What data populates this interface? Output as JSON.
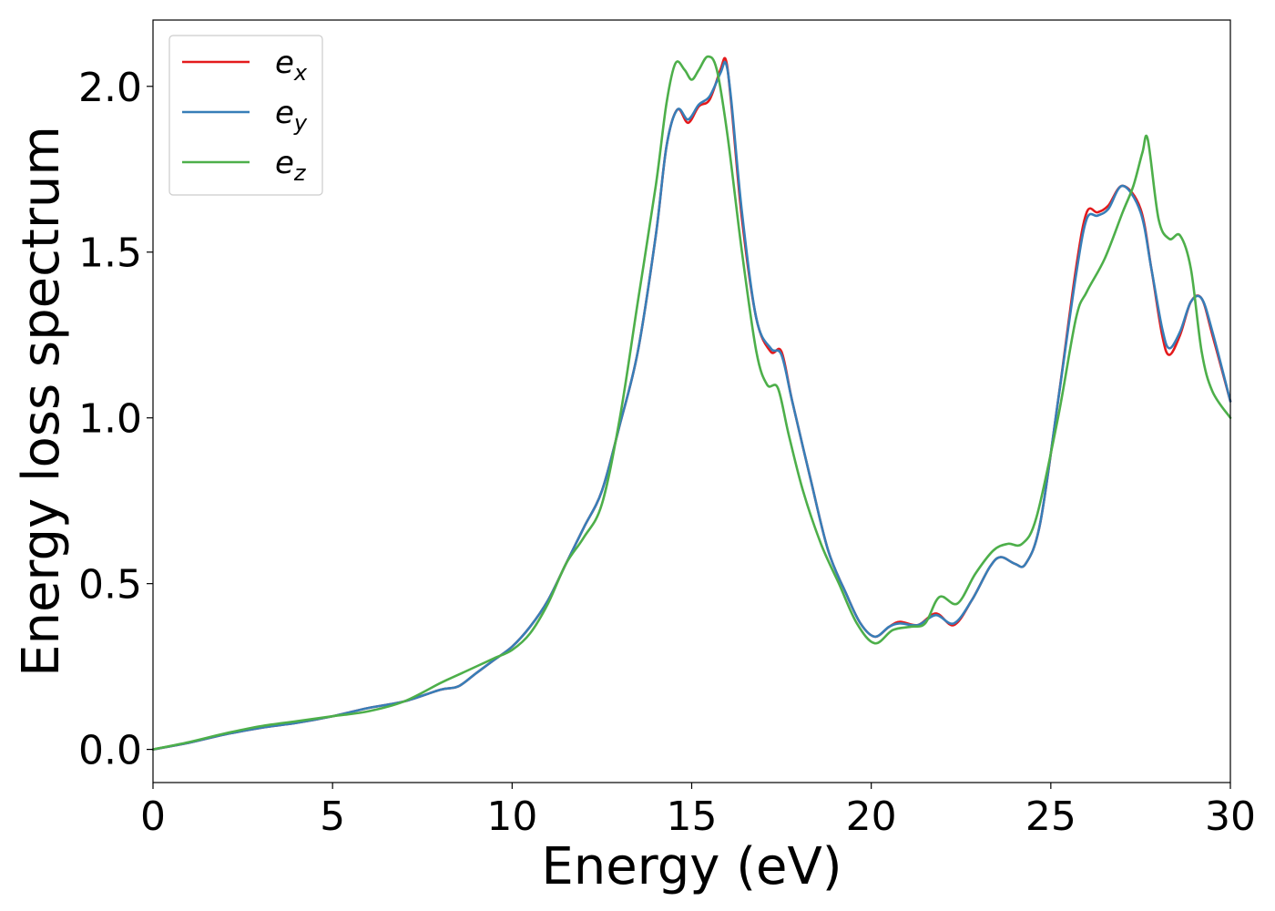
{
  "chart_data": {
    "type": "line",
    "xlabel": "Energy (eV)",
    "ylabel": "Energy loss spectrum",
    "xlim": [
      0,
      30
    ],
    "ylim": [
      -0.1,
      2.2
    ],
    "xticks": [
      0,
      5,
      10,
      15,
      20,
      25,
      30
    ],
    "xtick_labels": [
      "0",
      "5",
      "10",
      "15",
      "20",
      "25",
      "30"
    ],
    "yticks": [
      0.0,
      0.5,
      1.0,
      1.5,
      2.0
    ],
    "ytick_labels": [
      "0.0",
      "0.5",
      "1.0",
      "1.5",
      "2.0"
    ],
    "grid": false,
    "legend_position": "top-left",
    "series": [
      {
        "name": "e_x",
        "legend_base": "e",
        "legend_sub": "x",
        "color": "#e41a1c",
        "points": [
          [
            0,
            0
          ],
          [
            1,
            0.02
          ],
          [
            2,
            0.045
          ],
          [
            3,
            0.065
          ],
          [
            4,
            0.08
          ],
          [
            5,
            0.1
          ],
          [
            6,
            0.125
          ],
          [
            7,
            0.145
          ],
          [
            8,
            0.18
          ],
          [
            8.5,
            0.19
          ],
          [
            9,
            0.23
          ],
          [
            9.5,
            0.27
          ],
          [
            10,
            0.31
          ],
          [
            10.5,
            0.37
          ],
          [
            11,
            0.45
          ],
          [
            11.5,
            0.56
          ],
          [
            12,
            0.67
          ],
          [
            12.5,
            0.78
          ],
          [
            13,
            0.98
          ],
          [
            13.5,
            1.2
          ],
          [
            14,
            1.55
          ],
          [
            14.3,
            1.82
          ],
          [
            14.6,
            1.93
          ],
          [
            14.9,
            1.89
          ],
          [
            15.2,
            1.94
          ],
          [
            15.5,
            1.96
          ],
          [
            15.8,
            2.05
          ],
          [
            15.95,
            2.08
          ],
          [
            16.1,
            1.95
          ],
          [
            16.4,
            1.6
          ],
          [
            16.8,
            1.3
          ],
          [
            17.2,
            1.2
          ],
          [
            17.5,
            1.2
          ],
          [
            17.8,
            1.05
          ],
          [
            18.3,
            0.82
          ],
          [
            18.8,
            0.6
          ],
          [
            19.3,
            0.47
          ],
          [
            19.7,
            0.38
          ],
          [
            20.1,
            0.34
          ],
          [
            20.5,
            0.37
          ],
          [
            20.8,
            0.385
          ],
          [
            21.3,
            0.375
          ],
          [
            21.8,
            0.41
          ],
          [
            22.3,
            0.375
          ],
          [
            22.8,
            0.45
          ],
          [
            23.3,
            0.55
          ],
          [
            23.6,
            0.58
          ],
          [
            24,
            0.56
          ],
          [
            24.3,
            0.56
          ],
          [
            24.7,
            0.68
          ],
          [
            25.2,
            1.05
          ],
          [
            25.7,
            1.45
          ],
          [
            26,
            1.62
          ],
          [
            26.3,
            1.62
          ],
          [
            26.6,
            1.64
          ],
          [
            27,
            1.7
          ],
          [
            27.5,
            1.63
          ],
          [
            27.8,
            1.45
          ],
          [
            28.1,
            1.25
          ],
          [
            28.3,
            1.19
          ],
          [
            28.6,
            1.25
          ],
          [
            28.9,
            1.35
          ],
          [
            29.2,
            1.36
          ],
          [
            29.5,
            1.25
          ],
          [
            30,
            1.05
          ]
        ]
      },
      {
        "name": "e_y",
        "legend_base": "e",
        "legend_sub": "y",
        "color": "#377eb8",
        "points": [
          [
            0,
            0
          ],
          [
            1,
            0.02
          ],
          [
            2,
            0.045
          ],
          [
            3,
            0.065
          ],
          [
            4,
            0.08
          ],
          [
            5,
            0.1
          ],
          [
            6,
            0.125
          ],
          [
            7,
            0.145
          ],
          [
            8,
            0.18
          ],
          [
            8.5,
            0.19
          ],
          [
            9,
            0.23
          ],
          [
            9.5,
            0.27
          ],
          [
            10,
            0.31
          ],
          [
            10.5,
            0.37
          ],
          [
            11,
            0.45
          ],
          [
            11.5,
            0.56
          ],
          [
            12,
            0.67
          ],
          [
            12.5,
            0.78
          ],
          [
            13,
            0.98
          ],
          [
            13.5,
            1.2
          ],
          [
            14,
            1.55
          ],
          [
            14.3,
            1.82
          ],
          [
            14.6,
            1.93
          ],
          [
            14.9,
            1.9
          ],
          [
            15.2,
            1.945
          ],
          [
            15.5,
            1.97
          ],
          [
            15.8,
            2.04
          ],
          [
            15.95,
            2.07
          ],
          [
            16.1,
            1.96
          ],
          [
            16.4,
            1.62
          ],
          [
            16.8,
            1.3
          ],
          [
            17.2,
            1.21
          ],
          [
            17.5,
            1.19
          ],
          [
            17.8,
            1.05
          ],
          [
            18.3,
            0.82
          ],
          [
            18.8,
            0.6
          ],
          [
            19.3,
            0.47
          ],
          [
            19.7,
            0.38
          ],
          [
            20.1,
            0.34
          ],
          [
            20.5,
            0.37
          ],
          [
            20.8,
            0.38
          ],
          [
            21.3,
            0.375
          ],
          [
            21.8,
            0.405
          ],
          [
            22.3,
            0.38
          ],
          [
            22.8,
            0.45
          ],
          [
            23.3,
            0.55
          ],
          [
            23.6,
            0.58
          ],
          [
            24,
            0.56
          ],
          [
            24.3,
            0.56
          ],
          [
            24.7,
            0.68
          ],
          [
            25.2,
            1.05
          ],
          [
            25.7,
            1.43
          ],
          [
            26,
            1.6
          ],
          [
            26.3,
            1.61
          ],
          [
            26.6,
            1.63
          ],
          [
            27,
            1.7
          ],
          [
            27.5,
            1.62
          ],
          [
            27.8,
            1.45
          ],
          [
            28.1,
            1.27
          ],
          [
            28.3,
            1.21
          ],
          [
            28.6,
            1.26
          ],
          [
            28.9,
            1.35
          ],
          [
            29.2,
            1.36
          ],
          [
            29.5,
            1.26
          ],
          [
            30,
            1.05
          ]
        ]
      },
      {
        "name": "e_z",
        "legend_base": "e",
        "legend_sub": "z",
        "color": "#4daf4a",
        "points": [
          [
            0,
            0
          ],
          [
            1,
            0.022
          ],
          [
            2,
            0.048
          ],
          [
            3,
            0.07
          ],
          [
            4,
            0.085
          ],
          [
            5,
            0.1
          ],
          [
            6,
            0.115
          ],
          [
            7,
            0.145
          ],
          [
            8,
            0.2
          ],
          [
            8.5,
            0.225
          ],
          [
            9,
            0.25
          ],
          [
            9.5,
            0.275
          ],
          [
            10,
            0.3
          ],
          [
            10.5,
            0.35
          ],
          [
            11,
            0.44
          ],
          [
            11.5,
            0.56
          ],
          [
            12,
            0.64
          ],
          [
            12.5,
            0.74
          ],
          [
            13,
            1.0
          ],
          [
            13.5,
            1.35
          ],
          [
            14,
            1.7
          ],
          [
            14.3,
            1.95
          ],
          [
            14.55,
            2.07
          ],
          [
            14.8,
            2.05
          ],
          [
            15.0,
            2.02
          ],
          [
            15.2,
            2.05
          ],
          [
            15.45,
            2.09
          ],
          [
            15.7,
            2.05
          ],
          [
            16.0,
            1.85
          ],
          [
            16.4,
            1.5
          ],
          [
            16.8,
            1.2
          ],
          [
            17.1,
            1.1
          ],
          [
            17.4,
            1.09
          ],
          [
            17.7,
            0.95
          ],
          [
            18.1,
            0.78
          ],
          [
            18.6,
            0.62
          ],
          [
            19.1,
            0.5
          ],
          [
            19.6,
            0.38
          ],
          [
            20.1,
            0.32
          ],
          [
            20.6,
            0.36
          ],
          [
            21.1,
            0.37
          ],
          [
            21.5,
            0.38
          ],
          [
            21.9,
            0.46
          ],
          [
            22.4,
            0.44
          ],
          [
            22.9,
            0.53
          ],
          [
            23.4,
            0.6
          ],
          [
            23.8,
            0.62
          ],
          [
            24.2,
            0.62
          ],
          [
            24.6,
            0.7
          ],
          [
            25.2,
            1.0
          ],
          [
            25.7,
            1.3
          ],
          [
            26,
            1.38
          ],
          [
            26.5,
            1.48
          ],
          [
            27,
            1.62
          ],
          [
            27.3,
            1.7
          ],
          [
            27.55,
            1.8
          ],
          [
            27.7,
            1.84
          ],
          [
            28,
            1.6
          ],
          [
            28.3,
            1.54
          ],
          [
            28.6,
            1.55
          ],
          [
            28.9,
            1.45
          ],
          [
            29.2,
            1.2
          ],
          [
            29.5,
            1.08
          ],
          [
            30,
            1.0
          ]
        ]
      }
    ]
  }
}
